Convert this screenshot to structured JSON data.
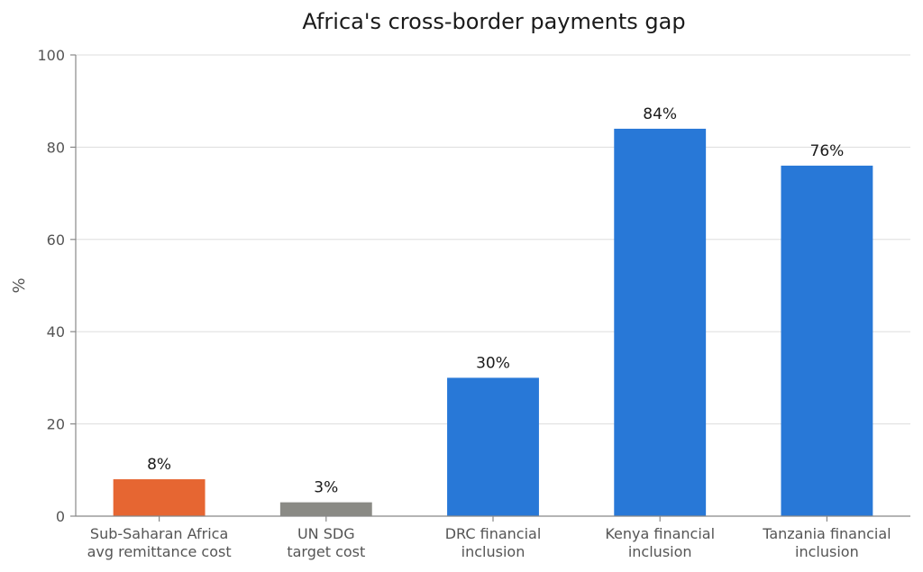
{
  "chart_data": {
    "type": "bar",
    "title": "Africa's cross-border payments gap",
    "xlabel": "",
    "ylabel": "%",
    "ylim": [
      0,
      100
    ],
    "yticks": [
      0,
      20,
      40,
      60,
      80,
      100
    ],
    "grid": true,
    "categories": [
      [
        "Sub-Saharan Africa",
        "avg remittance cost"
      ],
      [
        "UN SDG",
        "target cost"
      ],
      [
        "DRC financial",
        "inclusion"
      ],
      [
        "Kenya financial",
        "inclusion"
      ],
      [
        "Tanzania financial",
        "inclusion"
      ]
    ],
    "values": [
      8,
      3,
      30,
      84,
      76
    ],
    "data_labels": [
      "8%",
      "3%",
      "30%",
      "84%",
      "76%"
    ],
    "colors": [
      "#E66632",
      "#8A8A85",
      "#2878D7",
      "#2878D7",
      "#2878D7"
    ]
  }
}
